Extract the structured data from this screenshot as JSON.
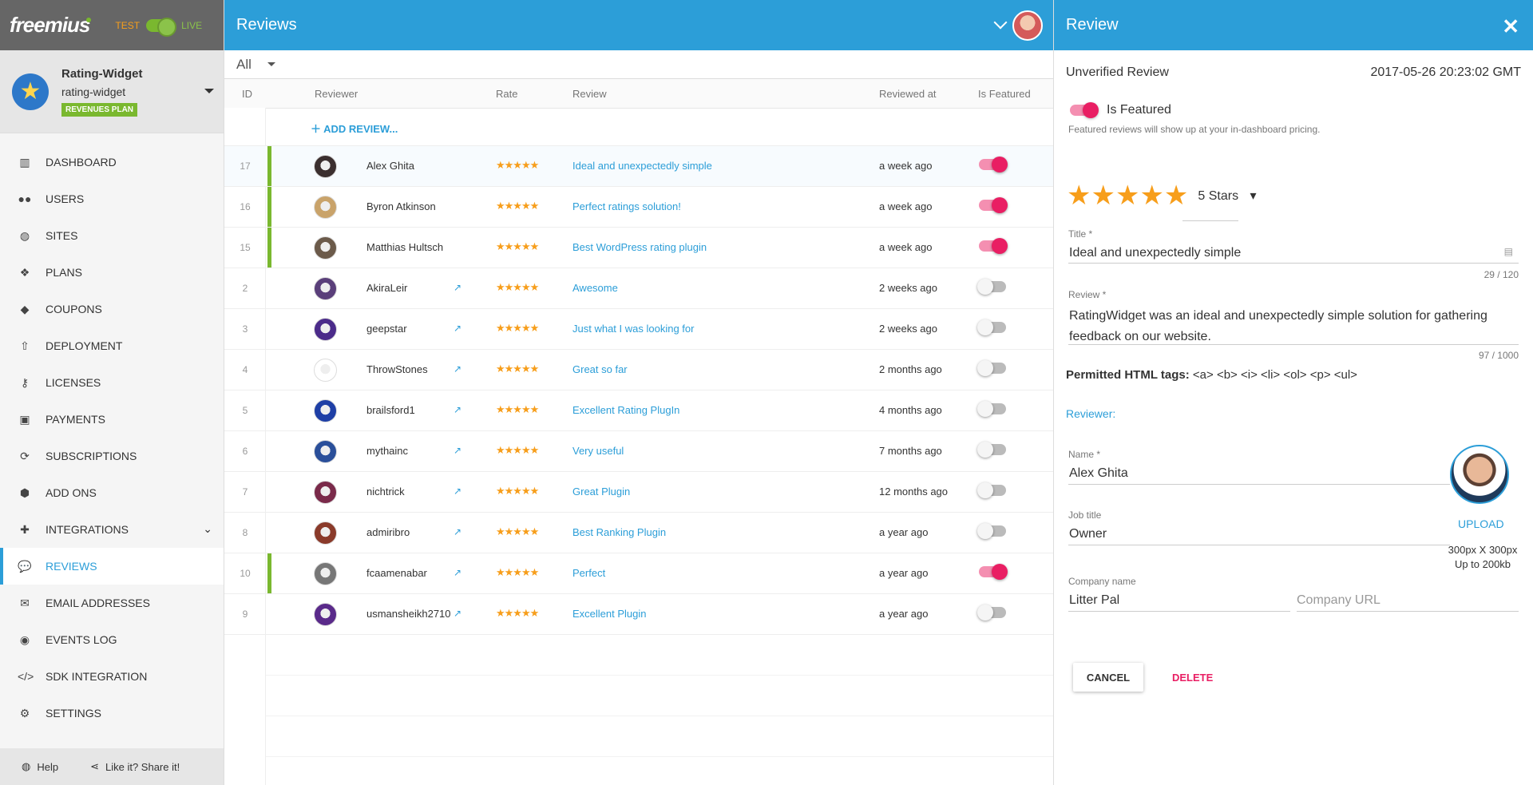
{
  "brand": {
    "logo": "freemius",
    "env_test": "TEST",
    "env_live": "LIVE"
  },
  "product": {
    "name": "Rating-Widget",
    "slug": "rating-widget",
    "plan": "REVENUES PLAN"
  },
  "nav": [
    {
      "label": "DASHBOARD",
      "icon": "chart-icon"
    },
    {
      "label": "USERS",
      "icon": "users-icon"
    },
    {
      "label": "SITES",
      "icon": "globe-icon"
    },
    {
      "label": "PLANS",
      "icon": "plans-icon"
    },
    {
      "label": "COUPONS",
      "icon": "tag-icon"
    },
    {
      "label": "DEPLOYMENT",
      "icon": "upload-icon"
    },
    {
      "label": "LICENSES",
      "icon": "key-icon"
    },
    {
      "label": "PAYMENTS",
      "icon": "money-icon"
    },
    {
      "label": "SUBSCRIPTIONS",
      "icon": "refresh-icon"
    },
    {
      "label": "ADD ONS",
      "icon": "cubes-icon"
    },
    {
      "label": "INTEGRATIONS",
      "icon": "puzzle-icon"
    },
    {
      "label": "REVIEWS",
      "icon": "comments-icon"
    },
    {
      "label": "EMAIL ADDRESSES",
      "icon": "envelope-icon"
    },
    {
      "label": "EVENTS LOG",
      "icon": "podcast-icon"
    },
    {
      "label": "SDK INTEGRATION",
      "icon": "code-icon"
    },
    {
      "label": "SETTINGS",
      "icon": "gear-icon"
    }
  ],
  "footer": {
    "help": "Help",
    "share": "Like it? Share it!"
  },
  "main": {
    "title": "Reviews",
    "filter": "All",
    "columns": {
      "id": "ID",
      "reviewer": "Reviewer",
      "rate": "Rate",
      "review": "Review",
      "reviewed_at": "Reviewed at",
      "featured": "Is Featured"
    },
    "add_review": "ADD REVIEW...",
    "stars": "★★★★★",
    "rows": [
      {
        "id": "17",
        "name": "Alex Ghita",
        "title": "Ideal and unexpectedly simple",
        "time": "a week ago",
        "featured": true,
        "link": false
      },
      {
        "id": "16",
        "name": "Byron Atkinson",
        "title": "Perfect ratings solution!",
        "time": "a week ago",
        "featured": true,
        "link": false
      },
      {
        "id": "15",
        "name": "Matthias Hultsch",
        "title": "Best WordPress rating plugin",
        "time": "a week ago",
        "featured": true,
        "link": false
      },
      {
        "id": "2",
        "name": "AkiraLeir",
        "title": "Awesome",
        "time": "2 weeks ago",
        "featured": false,
        "link": true
      },
      {
        "id": "3",
        "name": "geepstar",
        "title": "Just what I was looking for",
        "time": "2 weeks ago",
        "featured": false,
        "link": true
      },
      {
        "id": "4",
        "name": "ThrowStones",
        "title": "Great so far",
        "time": "2 months ago",
        "featured": false,
        "link": true
      },
      {
        "id": "5",
        "name": "brailsford1",
        "title": "Excellent Rating PlugIn",
        "time": "4 months ago",
        "featured": false,
        "link": true
      },
      {
        "id": "6",
        "name": "mythainc",
        "title": "Very useful",
        "time": "7 months ago",
        "featured": false,
        "link": true
      },
      {
        "id": "7",
        "name": "nichtrick",
        "title": "Great Plugin",
        "time": "12 months ago",
        "featured": false,
        "link": true
      },
      {
        "id": "8",
        "name": "admiribro",
        "title": "Best Ranking Plugin",
        "time": "a year ago",
        "featured": false,
        "link": true
      },
      {
        "id": "10",
        "name": "fcaamenabar",
        "title": "Perfect",
        "time": "a year ago",
        "featured": true,
        "link": true
      },
      {
        "id": "9",
        "name": "usmansheikh2710",
        "title": "Excellent Plugin",
        "time": "a year ago",
        "featured": false,
        "link": true
      }
    ]
  },
  "panel": {
    "title": "Review",
    "status": "Unverified Review",
    "date": "2017-05-26 20:23:02 GMT",
    "featured_label": "Is Featured",
    "featured_help": "Featured reviews will show up at your in-dashboard pricing.",
    "rating_label": "5 Stars",
    "title_label": "Title *",
    "title_value": "Ideal and unexpectedly simple",
    "title_count": "29 / 120",
    "review_label": "Review *",
    "review_value": "RatingWidget was an ideal and unexpectedly simple solution for gathering feedback on our website.",
    "review_count": "97 / 1000",
    "permitted_label": "Permitted HTML tags:",
    "permitted_tags": "<a> <b> <i> <li> <ol> <p> <ul>",
    "reviewer_heading": "Reviewer:",
    "name_label": "Name *",
    "name_value": "Alex Ghita",
    "job_label": "Job title",
    "job_value": "Owner",
    "upload": "UPLOAD",
    "upload_size": "300px X 300px",
    "upload_limit": "Up to 200kb",
    "company_label": "Company name",
    "company_value": "Litter Pal",
    "company_url_placeholder": "Company URL",
    "cancel": "CANCEL",
    "delete": "DELETE"
  },
  "colors": {
    "accent": "#2c9ed8",
    "featured_bar": "#7ab82f",
    "toggle_on": "#e91e63",
    "stars": "#f79e1b"
  }
}
